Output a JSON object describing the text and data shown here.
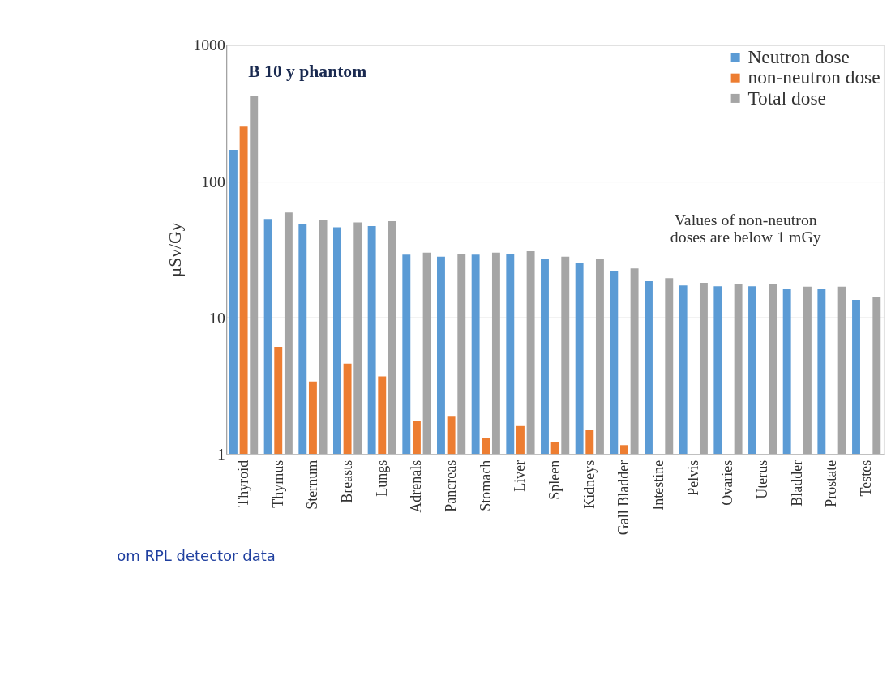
{
  "chart_data": {
    "type": "bar",
    "title": "B 10 y phantom",
    "ylabel": "µSv/Gy",
    "categories": [
      "Thyroid",
      "Thymus",
      "Sternum",
      "Breasts",
      "Lungs",
      "Adrenals",
      "Pancreas",
      "Stomach",
      "Liver",
      "Spleen",
      "Kidneys",
      "Gall Bladder",
      "Intestine",
      "Pelvis",
      "Ovaries",
      "Uterus",
      "Bladder",
      "Prostate",
      "Testes"
    ],
    "series": [
      {
        "name": "Neutron dose",
        "color": "#5b9bd5",
        "values": [
          170,
          53,
          49,
          46,
          47,
          29,
          28,
          29,
          29.5,
          27,
          25,
          22,
          18.5,
          17.2,
          17,
          17,
          16.2,
          16.2,
          13.5
        ]
      },
      {
        "name": "non-neutron dose",
        "color": "#ed7d31",
        "values": [
          252,
          6.1,
          3.4,
          4.6,
          3.7,
          1.75,
          1.9,
          1.3,
          1.6,
          1.22,
          1.5,
          1.16,
          null,
          null,
          null,
          null,
          null,
          null,
          null
        ]
      },
      {
        "name": "Total dose",
        "color": "#a5a5a5",
        "values": [
          421,
          59,
          52,
          50,
          51,
          30,
          29.5,
          30,
          30.7,
          28,
          27,
          23,
          19.5,
          18,
          17.7,
          17.7,
          16.9,
          16.9,
          14.1
        ]
      }
    ],
    "log": "y",
    "ylim": [
      1,
      1000
    ],
    "yticks": [
      1,
      10,
      100,
      1000
    ],
    "grid": "y",
    "legend": "top right",
    "annotations": [
      "Values of non-neutron\ndoses are below 1 mGy",
      "om RPL detector data"
    ]
  }
}
